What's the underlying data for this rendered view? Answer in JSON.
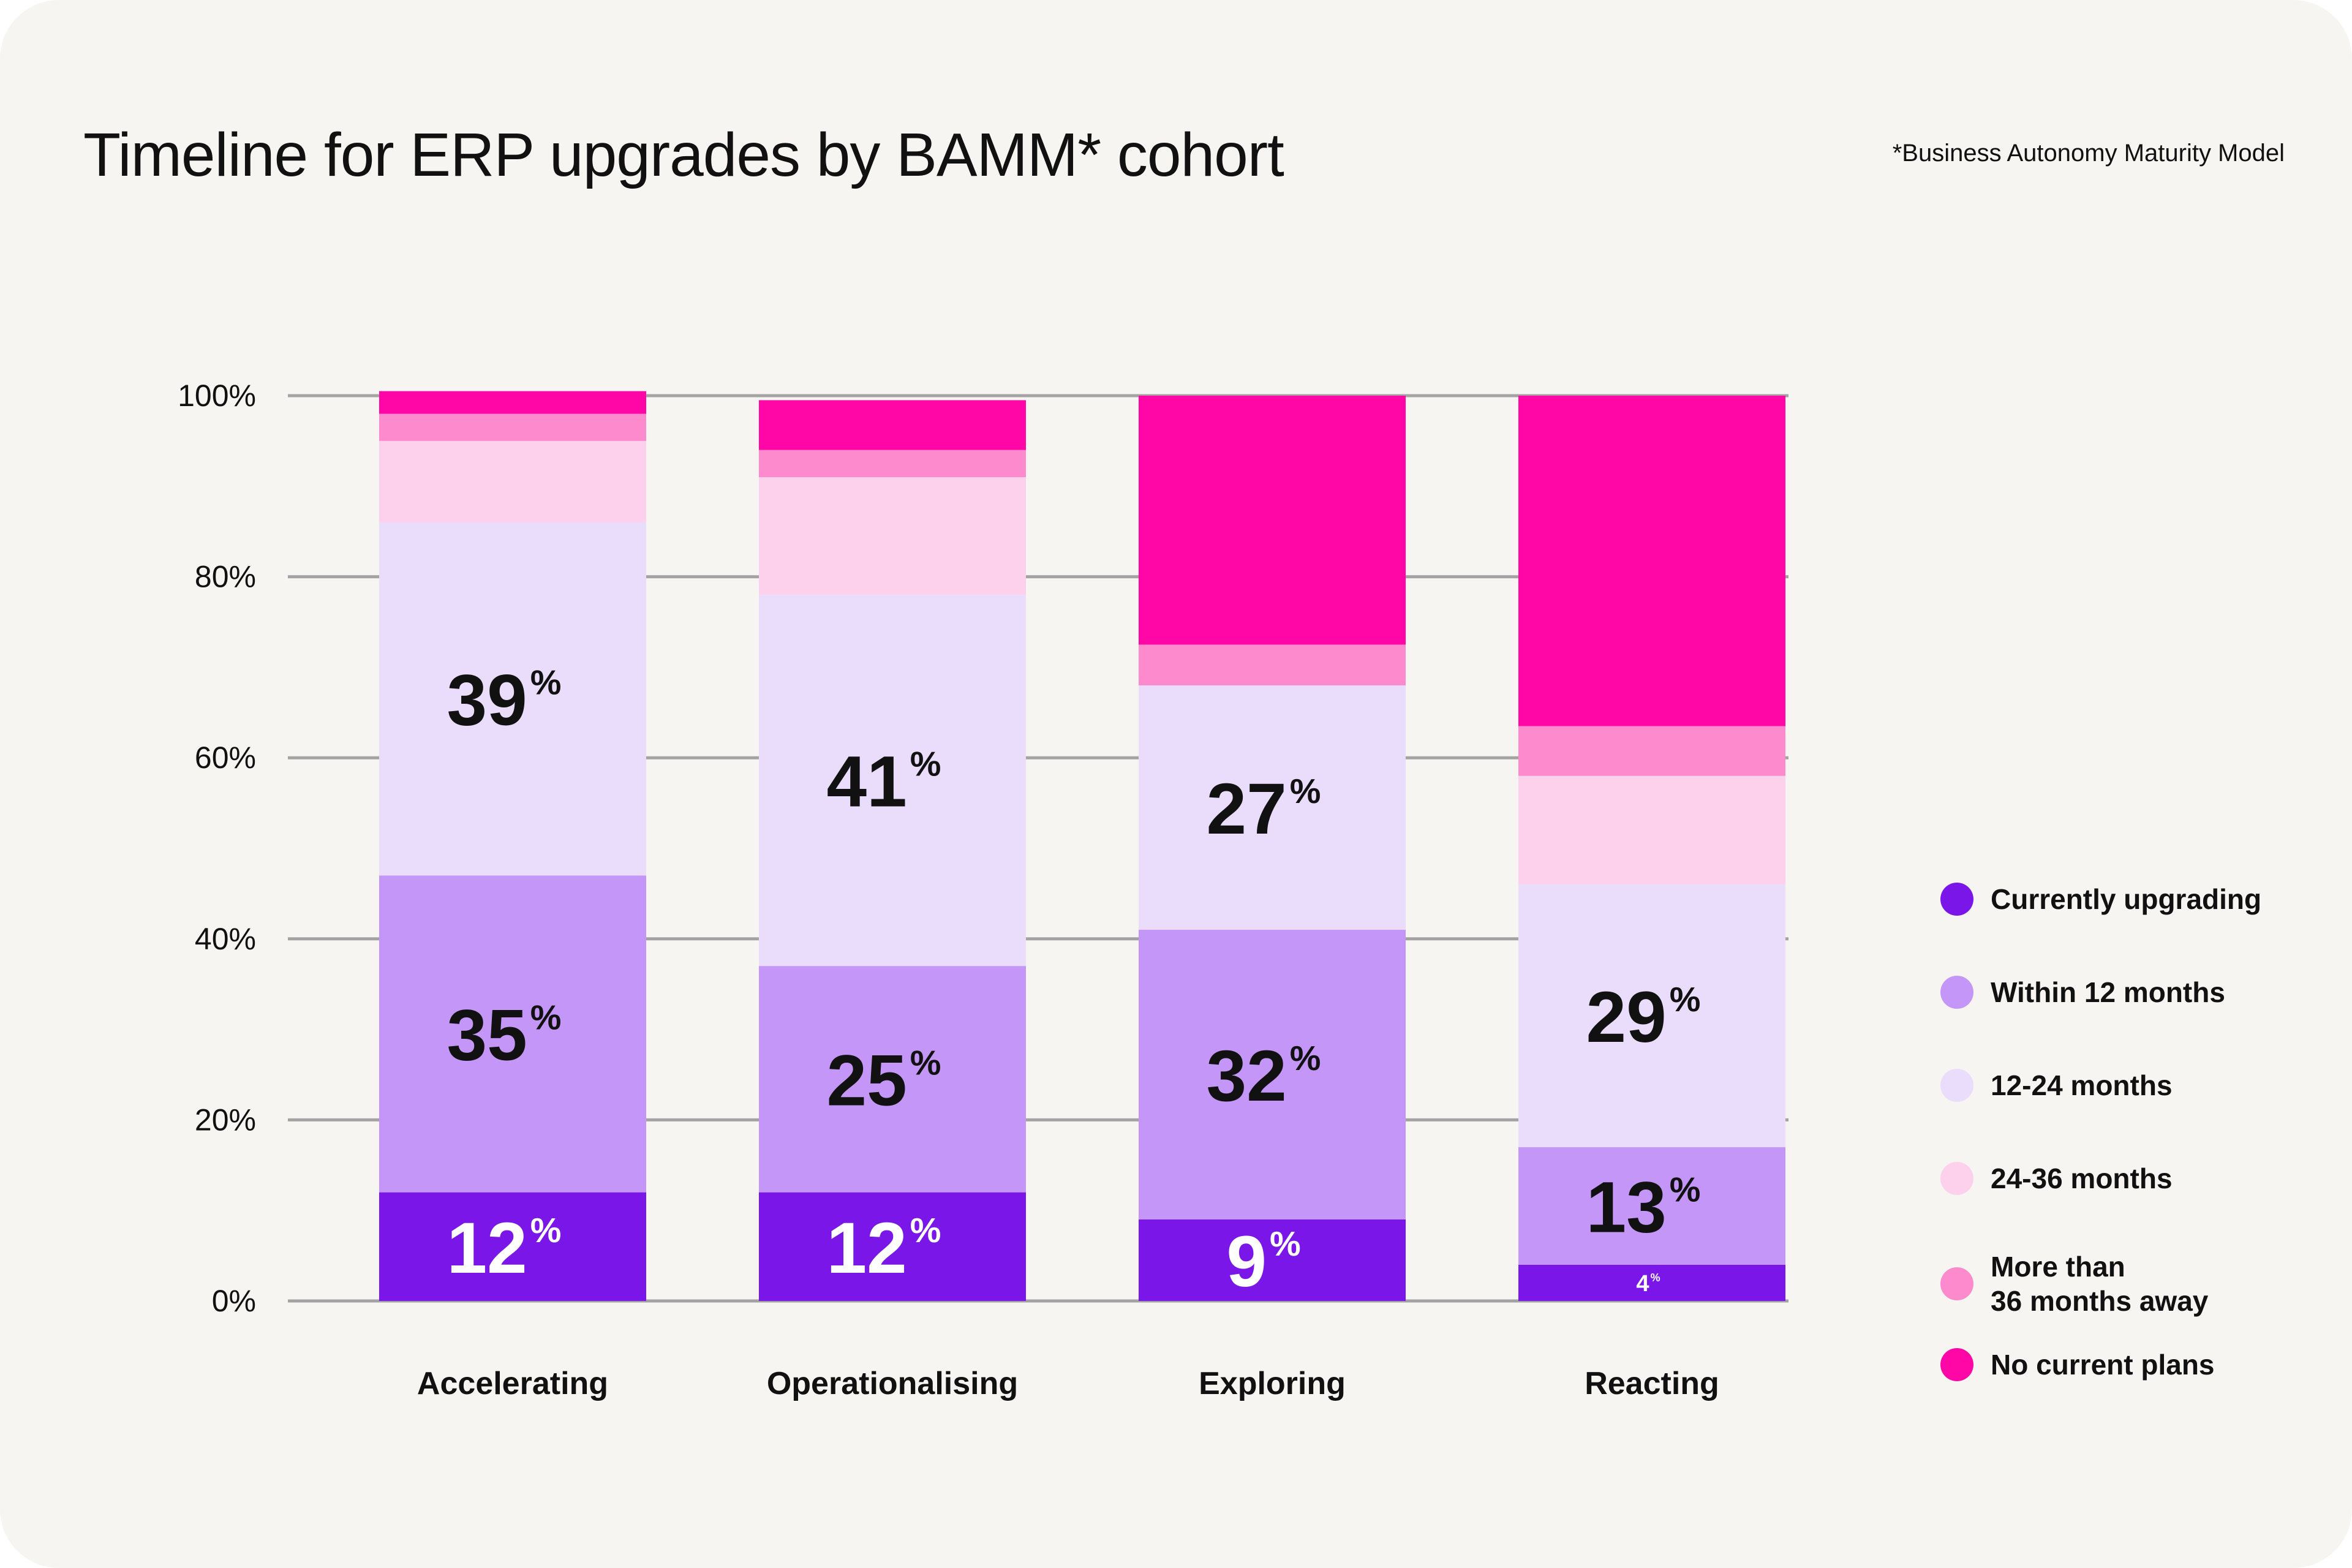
{
  "header": {
    "title": "Timeline for ERP upgrades by BAMM* cohort",
    "footnote": "*Business Autonomy Maturity Model"
  },
  "chart_data": {
    "type": "bar",
    "stacked": true,
    "categories": [
      "Accelerating",
      "Operationalising",
      "Exploring",
      "Reacting"
    ],
    "ylim": [
      0,
      100
    ],
    "y_ticks": [
      0,
      20,
      40,
      60,
      80,
      100
    ],
    "y_tick_labels": [
      "0%",
      "20%",
      "40%",
      "60%",
      "80%",
      "100%"
    ],
    "grid": true,
    "legend_position": "right",
    "series": [
      {
        "name": "Currently upgrading",
        "color": "#7a17e8",
        "label_color": "#ffffff",
        "values": [
          12,
          12,
          9,
          4
        ],
        "labels": [
          "12",
          "12",
          "9",
          "4"
        ]
      },
      {
        "name": "Within 12 months",
        "color": "#c396f8",
        "label_color": "#111111",
        "values": [
          35,
          25,
          32,
          13
        ],
        "labels": [
          "35",
          "25",
          "32",
          "13"
        ]
      },
      {
        "name": "12-24 months",
        "color": "#eadcfb",
        "label_color": "#111111",
        "values": [
          39,
          41,
          27,
          29
        ],
        "labels": [
          "39",
          "41",
          "27",
          "29"
        ]
      },
      {
        "name": "24-36 months",
        "color": "#fdd0eb",
        "label_color": "#111111",
        "values": [
          9,
          13,
          0,
          12
        ],
        "labels": [
          "",
          "",
          "",
          ""
        ]
      },
      {
        "name": "More than\n36 months away",
        "color": "#fd8acc",
        "label_color": "#111111",
        "values": [
          3,
          3,
          4.5,
          5.5
        ],
        "labels": [
          "",
          "",
          "",
          ""
        ]
      },
      {
        "name": "No current plans",
        "color": "#ff06a6",
        "label_color": "#111111",
        "values": [
          2.5,
          5.5,
          27.5,
          36.5
        ],
        "labels": [
          "",
          "",
          "",
          ""
        ]
      }
    ],
    "percent_sign": "%"
  }
}
